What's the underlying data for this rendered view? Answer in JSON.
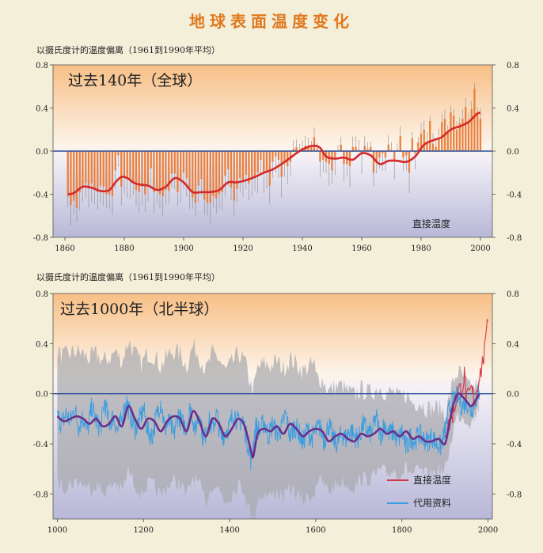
{
  "title": "地球表面温度变化",
  "chart_data": [
    {
      "type": "bar",
      "panel_title": "过去140年（全球）",
      "ylabel": "以摄氏度计的温度偏离（1961到1990年平均）",
      "annotation": "直接温度",
      "xlim": [
        1856,
        2004
      ],
      "ylim": [
        -0.8,
        0.8
      ],
      "xticks": [
        "1860",
        "1880",
        "1900",
        "1920",
        "1940",
        "1960",
        "1980",
        "2000"
      ],
      "yticks_left": [
        "0.8",
        "0.4",
        "0.0",
        "-0.4",
        "-0.8"
      ],
      "yticks_right": [
        "0.8",
        "0.4",
        "0.0",
        "-0.4",
        "-0.8"
      ],
      "bar_color": "#e9803f",
      "smooth_color": "#d42a2a",
      "zero_line_color": "#2a4f9a",
      "smooth_curve": {
        "x": [
          1861,
          1863,
          1866,
          1869,
          1872,
          1875,
          1877,
          1879,
          1881,
          1883,
          1885,
          1888,
          1891,
          1894,
          1897,
          1900,
          1903,
          1906,
          1909,
          1912,
          1915,
          1918,
          1921,
          1924,
          1927,
          1930,
          1933,
          1936,
          1939,
          1942,
          1944,
          1946,
          1948,
          1951,
          1954,
          1957,
          1960,
          1963,
          1966,
          1969,
          1972,
          1975,
          1978,
          1981,
          1984,
          1987,
          1990,
          1993,
          1996,
          1999,
          2000
        ],
        "y": [
          -0.4,
          -0.39,
          -0.33,
          -0.34,
          -0.37,
          -0.36,
          -0.29,
          -0.24,
          -0.25,
          -0.29,
          -0.31,
          -0.32,
          -0.36,
          -0.33,
          -0.25,
          -0.29,
          -0.38,
          -0.38,
          -0.38,
          -0.36,
          -0.29,
          -0.29,
          -0.27,
          -0.24,
          -0.2,
          -0.17,
          -0.12,
          -0.06,
          0.0,
          0.04,
          0.05,
          0.03,
          -0.05,
          -0.07,
          -0.06,
          -0.08,
          -0.02,
          -0.04,
          -0.12,
          -0.09,
          -0.09,
          -0.1,
          -0.05,
          0.06,
          0.1,
          0.13,
          0.2,
          0.23,
          0.27,
          0.35,
          0.35
        ]
      },
      "annual": {
        "x": [
          1861,
          1862,
          1863,
          1864,
          1865,
          1866,
          1867,
          1868,
          1869,
          1870,
          1871,
          1872,
          1873,
          1874,
          1875,
          1876,
          1877,
          1878,
          1879,
          1880,
          1881,
          1882,
          1883,
          1884,
          1885,
          1886,
          1887,
          1888,
          1889,
          1890,
          1891,
          1892,
          1893,
          1894,
          1895,
          1896,
          1897,
          1898,
          1899,
          1900,
          1901,
          1902,
          1903,
          1904,
          1905,
          1906,
          1907,
          1908,
          1909,
          1910,
          1911,
          1912,
          1913,
          1914,
          1915,
          1916,
          1917,
          1918,
          1919,
          1920,
          1921,
          1922,
          1923,
          1924,
          1925,
          1926,
          1927,
          1928,
          1929,
          1930,
          1931,
          1932,
          1933,
          1934,
          1935,
          1936,
          1937,
          1938,
          1939,
          1940,
          1941,
          1942,
          1943,
          1944,
          1945,
          1946,
          1947,
          1948,
          1949,
          1950,
          1951,
          1952,
          1953,
          1954,
          1955,
          1956,
          1957,
          1958,
          1959,
          1960,
          1961,
          1962,
          1963,
          1964,
          1965,
          1966,
          1967,
          1968,
          1969,
          1970,
          1971,
          1972,
          1973,
          1974,
          1975,
          1976,
          1977,
          1978,
          1979,
          1980,
          1981,
          1982,
          1983,
          1984,
          1985,
          1986,
          1987,
          1988,
          1989,
          1990,
          1991,
          1992,
          1993,
          1994,
          1995,
          1996,
          1997,
          1998,
          1999,
          2000
        ],
        "y": [
          -0.42,
          -0.5,
          -0.46,
          -0.53,
          -0.38,
          -0.32,
          -0.3,
          -0.35,
          -0.3,
          -0.34,
          -0.38,
          -0.32,
          -0.33,
          -0.4,
          -0.4,
          -0.42,
          -0.18,
          -0.04,
          -0.33,
          -0.25,
          -0.24,
          -0.26,
          -0.3,
          -0.36,
          -0.38,
          -0.33,
          -0.4,
          -0.31,
          -0.16,
          -0.38,
          -0.35,
          -0.4,
          -0.42,
          -0.36,
          -0.37,
          -0.21,
          -0.21,
          -0.38,
          -0.28,
          -0.2,
          -0.25,
          -0.35,
          -0.43,
          -0.48,
          -0.32,
          -0.26,
          -0.45,
          -0.48,
          -0.48,
          -0.42,
          -0.44,
          -0.4,
          -0.38,
          -0.23,
          -0.17,
          -0.34,
          -0.46,
          -0.35,
          -0.25,
          -0.28,
          -0.22,
          -0.3,
          -0.26,
          -0.25,
          -0.2,
          -0.08,
          -0.2,
          -0.18,
          -0.32,
          -0.1,
          -0.05,
          -0.08,
          -0.24,
          -0.1,
          -0.14,
          -0.1,
          0.02,
          0.04,
          0.0,
          0.03,
          0.05,
          0.03,
          0.04,
          0.13,
          0.02,
          -0.1,
          -0.08,
          -0.1,
          -0.12,
          -0.18,
          -0.06,
          0.0,
          0.06,
          -0.12,
          -0.12,
          -0.14,
          0.04,
          0.04,
          0.01,
          -0.02,
          0.05,
          0.02,
          0.04,
          -0.2,
          -0.1,
          -0.06,
          -0.02,
          -0.06,
          0.06,
          0.01,
          -0.09,
          0.01,
          0.14,
          -0.06,
          -0.04,
          -0.2,
          0.12,
          -0.02,
          0.08,
          0.16,
          0.2,
          0.08,
          0.28,
          0.07,
          0.04,
          0.11,
          0.27,
          0.3,
          0.18,
          0.36,
          0.33,
          0.2,
          0.26,
          0.3,
          0.41,
          0.27,
          0.39,
          0.58,
          0.35,
          0.3
        ]
      }
    },
    {
      "type": "line",
      "panel_title": "过去1000年（北半球）",
      "ylabel": "以摄氏度计的温度偏离（1961到1990年平均）",
      "xlim": [
        990,
        2010
      ],
      "ylim": [
        -1.0,
        0.8
      ],
      "xticks": [
        "1000",
        "1200",
        "1400",
        "1600",
        "1800",
        "2000"
      ],
      "yticks_left": [
        "0.8",
        "0.4",
        "0.0",
        "-0.4",
        "-0.8"
      ],
      "yticks_right": [
        "0.8",
        "0.4",
        "0.0",
        "-0.4",
        "-0.8"
      ],
      "zero_line_color": "#2a4f9a",
      "series": [
        {
          "name": "直接温度",
          "color": "#d63a4a",
          "x": [
            1900,
            1910,
            1920,
            1930,
            1940,
            1945,
            1950,
            1955,
            1960,
            1965,
            1970,
            1975,
            1980,
            1985,
            1990,
            1995,
            1998,
            2000
          ],
          "y": [
            -0.3,
            -0.25,
            -0.15,
            0.02,
            0.05,
            0.15,
            -0.05,
            -0.02,
            0.03,
            0.0,
            -0.06,
            0.05,
            0.15,
            0.2,
            0.3,
            0.4,
            0.65,
            0.58
          ]
        },
        {
          "name": "代用资料",
          "color": "#3a9ee2",
          "x": [
            1000,
            1010,
            1020,
            1030,
            1040,
            1050,
            1060,
            1070,
            1080,
            1090,
            1100,
            1110,
            1120,
            1130,
            1140,
            1150,
            1160,
            1170,
            1180,
            1190,
            1200,
            1210,
            1220,
            1230,
            1240,
            1250,
            1260,
            1270,
            1280,
            1290,
            1300,
            1310,
            1320,
            1330,
            1340,
            1350,
            1360,
            1370,
            1380,
            1390,
            1400,
            1410,
            1420,
            1430,
            1440,
            1450,
            1460,
            1470,
            1480,
            1490,
            1500,
            1510,
            1520,
            1530,
            1540,
            1550,
            1560,
            1570,
            1580,
            1590,
            1600,
            1610,
            1620,
            1630,
            1640,
            1650,
            1660,
            1670,
            1680,
            1690,
            1700,
            1710,
            1720,
            1730,
            1740,
            1750,
            1760,
            1770,
            1780,
            1790,
            1800,
            1810,
            1820,
            1830,
            1840,
            1850,
            1860,
            1870,
            1880,
            1890,
            1900,
            1910,
            1920,
            1930,
            1940,
            1950,
            1960,
            1970,
            1980
          ],
          "y": [
            -0.18,
            -0.24,
            -0.16,
            -0.22,
            -0.12,
            -0.26,
            -0.18,
            -0.3,
            -0.1,
            -0.22,
            -0.28,
            -0.06,
            -0.24,
            -0.18,
            -0.3,
            -0.2,
            -0.05,
            -0.18,
            -0.28,
            -0.22,
            -0.12,
            -0.3,
            -0.34,
            -0.18,
            -0.06,
            -0.28,
            -0.22,
            -0.34,
            -0.16,
            -0.24,
            -0.26,
            -0.1,
            -0.3,
            -0.14,
            -0.4,
            -0.2,
            -0.28,
            -0.16,
            -0.36,
            -0.3,
            -0.26,
            -0.14,
            -0.24,
            -0.2,
            -0.36,
            -0.54,
            -0.26,
            -0.3,
            -0.22,
            -0.34,
            -0.24,
            -0.32,
            -0.28,
            -0.16,
            -0.34,
            -0.26,
            -0.3,
            -0.4,
            -0.28,
            -0.36,
            -0.3,
            -0.26,
            -0.38,
            -0.24,
            -0.36,
            -0.4,
            -0.32,
            -0.36,
            -0.28,
            -0.34,
            -0.36,
            -0.24,
            -0.3,
            -0.32,
            -0.18,
            -0.34,
            -0.24,
            -0.32,
            -0.3,
            -0.38,
            -0.3,
            -0.44,
            -0.34,
            -0.38,
            -0.32,
            -0.36,
            -0.38,
            -0.34,
            -0.4,
            -0.42,
            -0.3,
            -0.12,
            -0.05,
            -0.02,
            -0.1,
            -0.06,
            -0.14,
            -0.05,
            0.02
          ]
        }
      ],
      "smooth_curve": {
        "color": "#6a2f8a",
        "x": [
          1000,
          1015,
          1030,
          1045,
          1060,
          1075,
          1090,
          1105,
          1120,
          1135,
          1150,
          1165,
          1180,
          1195,
          1210,
          1225,
          1240,
          1255,
          1270,
          1285,
          1300,
          1315,
          1330,
          1345,
          1360,
          1375,
          1390,
          1405,
          1420,
          1435,
          1450,
          1455,
          1465,
          1480,
          1495,
          1510,
          1525,
          1540,
          1555,
          1570,
          1585,
          1600,
          1615,
          1630,
          1645,
          1660,
          1675,
          1690,
          1705,
          1720,
          1735,
          1750,
          1765,
          1780,
          1795,
          1810,
          1825,
          1840,
          1855,
          1870,
          1885,
          1900,
          1910,
          1920,
          1930,
          1940,
          1950,
          1960,
          1970,
          1980
        ],
        "y": [
          -0.18,
          -0.22,
          -0.2,
          -0.18,
          -0.2,
          -0.24,
          -0.2,
          -0.26,
          -0.24,
          -0.18,
          -0.26,
          -0.1,
          -0.2,
          -0.28,
          -0.2,
          -0.22,
          -0.3,
          -0.22,
          -0.18,
          -0.2,
          -0.3,
          -0.14,
          -0.22,
          -0.34,
          -0.2,
          -0.24,
          -0.34,
          -0.28,
          -0.2,
          -0.26,
          -0.46,
          -0.5,
          -0.32,
          -0.28,
          -0.3,
          -0.26,
          -0.32,
          -0.24,
          -0.28,
          -0.34,
          -0.3,
          -0.28,
          -0.3,
          -0.38,
          -0.34,
          -0.32,
          -0.36,
          -0.38,
          -0.32,
          -0.34,
          -0.32,
          -0.28,
          -0.32,
          -0.3,
          -0.34,
          -0.3,
          -0.36,
          -0.34,
          -0.38,
          -0.38,
          -0.36,
          -0.4,
          -0.24,
          -0.08,
          0.0,
          -0.02,
          -0.06,
          -0.1,
          -0.06,
          0.0
        ]
      }
    }
  ],
  "legend": [
    {
      "label": "直接温度",
      "color": "#d63a4a"
    },
    {
      "label": "代用资料",
      "color": "#3a9ee2"
    }
  ]
}
